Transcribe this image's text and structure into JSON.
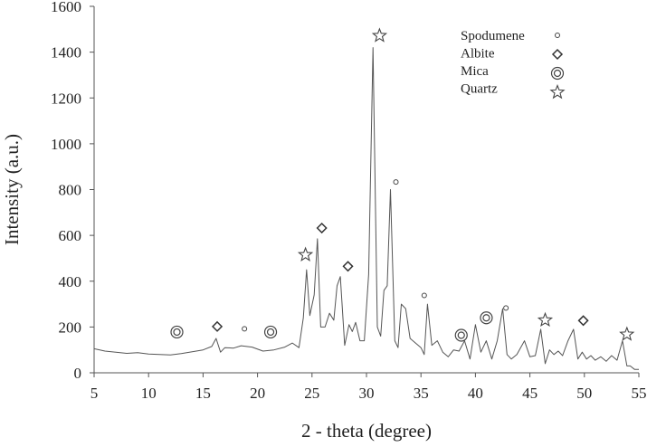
{
  "chart_data": {
    "type": "line",
    "title": "",
    "xlabel": "2 - theta (degree)",
    "ylabel": "Intensity (a.u.)",
    "xlim": [
      5,
      55
    ],
    "ylim": [
      0,
      1600
    ],
    "xticks": [
      5,
      10,
      15,
      20,
      25,
      30,
      35,
      40,
      45,
      50,
      55
    ],
    "yticks": [
      0,
      200,
      400,
      600,
      800,
      1000,
      1200,
      1400,
      1600
    ],
    "grid": false,
    "legend_position": "top-right",
    "legend": [
      {
        "label": "Spodumene",
        "marker": "small-circle"
      },
      {
        "label": "Albite",
        "marker": "diamond"
      },
      {
        "label": "Mica",
        "marker": "double-circle"
      },
      {
        "label": "Quartz",
        "marker": "star"
      }
    ],
    "series": [
      {
        "x": [
          5.0,
          6.0,
          7.0,
          8.0,
          9.0,
          10.0,
          11.0,
          12.0,
          13.0,
          14.0,
          15.0,
          15.8,
          16.2,
          16.6,
          17.0,
          17.8,
          18.5,
          19.5,
          20.5,
          21.5,
          22.5,
          23.2,
          23.8,
          24.2,
          24.5,
          24.8,
          25.2,
          25.5,
          25.8,
          26.2,
          26.6,
          27.0,
          27.3,
          27.6,
          28.0,
          28.4,
          28.7,
          29.0,
          29.4,
          29.8,
          30.2,
          30.6,
          31.0,
          31.3,
          31.6,
          31.9,
          32.2,
          32.6,
          32.9,
          33.2,
          33.6,
          34.0,
          34.5,
          35.0,
          35.3,
          35.6,
          36.0,
          36.5,
          37.0,
          37.5,
          38.0,
          38.5,
          39.0,
          39.5,
          40.0,
          40.5,
          41.0,
          41.5,
          42.0,
          42.5,
          42.9,
          43.3,
          43.8,
          44.5,
          45.0,
          45.5,
          46.0,
          46.4,
          46.8,
          47.2,
          47.6,
          48.0,
          48.5,
          49.0,
          49.4,
          49.8,
          50.2,
          50.6,
          51.0,
          51.5,
          52.0,
          52.5,
          53.0,
          53.5,
          53.9,
          54.2,
          54.6,
          55.0
        ],
        "y": [
          105,
          95,
          90,
          85,
          88,
          82,
          80,
          78,
          84,
          92,
          100,
          115,
          150,
          90,
          110,
          108,
          118,
          112,
          95,
          100,
          112,
          130,
          110,
          240,
          450,
          250,
          340,
          585,
          200,
          200,
          260,
          230,
          380,
          420,
          120,
          210,
          180,
          220,
          140,
          140,
          430,
          1420,
          200,
          160,
          360,
          380,
          800,
          140,
          110,
          300,
          280,
          150,
          130,
          110,
          80,
          300,
          120,
          140,
          90,
          70,
          100,
          95,
          140,
          60,
          210,
          90,
          140,
          60,
          140,
          280,
          80,
          60,
          80,
          140,
          70,
          75,
          190,
          40,
          100,
          80,
          95,
          75,
          140,
          190,
          60,
          90,
          60,
          75,
          55,
          70,
          50,
          75,
          55,
          140,
          30,
          30,
          15,
          15
        ]
      }
    ],
    "annotations": [
      {
        "marker": "double-circle",
        "x": 12.6,
        "y": 178
      },
      {
        "marker": "diamond",
        "x": 16.3,
        "y": 202
      },
      {
        "marker": "small-circle",
        "x": 18.8,
        "y": 192
      },
      {
        "marker": "double-circle",
        "x": 21.2,
        "y": 178
      },
      {
        "marker": "star",
        "x": 24.4,
        "y": 515
      },
      {
        "marker": "diamond",
        "x": 25.9,
        "y": 632
      },
      {
        "marker": "diamond",
        "x": 28.3,
        "y": 465
      },
      {
        "marker": "star",
        "x": 31.2,
        "y": 1472
      },
      {
        "marker": "small-circle",
        "x": 32.7,
        "y": 833
      },
      {
        "marker": "small-circle",
        "x": 35.3,
        "y": 338
      },
      {
        "marker": "double-circle",
        "x": 38.7,
        "y": 164
      },
      {
        "marker": "double-circle",
        "x": 41.0,
        "y": 240
      },
      {
        "marker": "small-circle",
        "x": 42.8,
        "y": 283
      },
      {
        "marker": "star",
        "x": 46.4,
        "y": 230
      },
      {
        "marker": "diamond",
        "x": 49.9,
        "y": 228
      },
      {
        "marker": "star",
        "x": 53.9,
        "y": 168
      }
    ]
  }
}
